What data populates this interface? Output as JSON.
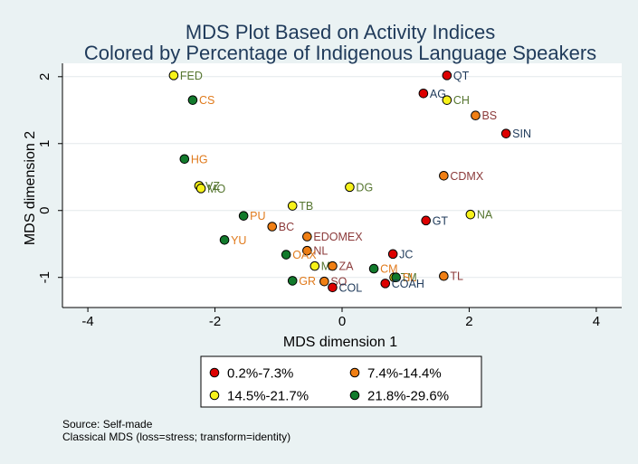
{
  "chart_data": {
    "type": "scatter",
    "title": [
      "MDS Plot Based on Activity Indices",
      "Colored by Percentage of Indigenous Language Speakers"
    ],
    "xlabel": "MDS dimension 1",
    "ylabel": "MDS dimension 2",
    "xlim": [
      -4.4,
      4.4
    ],
    "ylim": [
      -1.45,
      2.2
    ],
    "xticks": [
      -4,
      -2,
      0,
      2,
      4
    ],
    "yticks": [
      -1,
      0,
      1,
      2
    ],
    "grid": true,
    "legend_placement": "bottom",
    "legend": [
      {
        "key": "c1",
        "label": "0.2%-7.3%",
        "color": "#dd0000"
      },
      {
        "key": "c2",
        "label": "7.4%-14.4%",
        "color": "#f07f14"
      },
      {
        "key": "c3",
        "label": "14.5%-21.7%",
        "color": "#f7f21a"
      },
      {
        "key": "c4",
        "label": "21.8%-29.6%",
        "color": "#127a2c"
      }
    ],
    "label_colors": {
      "c1": "#1f3a5a",
      "c2": "#8b3a3a",
      "c3": "#55752f",
      "c4": "#e07a1c"
    },
    "points": [
      {
        "label": "FED",
        "x": -2.65,
        "y": 2.02,
        "cat": "c3"
      },
      {
        "label": "QT",
        "x": 1.65,
        "y": 2.02,
        "cat": "c1"
      },
      {
        "label": "AG",
        "x": 1.28,
        "y": 1.75,
        "cat": "c1"
      },
      {
        "label": "CH",
        "x": 1.65,
        "y": 1.65,
        "cat": "c3"
      },
      {
        "label": "CS",
        "x": -2.35,
        "y": 1.65,
        "cat": "c4"
      },
      {
        "label": "BS",
        "x": 2.1,
        "y": 1.42,
        "cat": "c2"
      },
      {
        "label": "SIN",
        "x": 2.58,
        "y": 1.15,
        "cat": "c1"
      },
      {
        "label": "HG",
        "x": -2.48,
        "y": 0.77,
        "cat": "c4"
      },
      {
        "label": "CDMX",
        "x": 1.6,
        "y": 0.52,
        "cat": "c2"
      },
      {
        "label": "VZ",
        "x": -2.25,
        "y": 0.37,
        "cat": "c3"
      },
      {
        "label": "MO",
        "x": -2.22,
        "y": 0.33,
        "cat": "c3"
      },
      {
        "label": "DG",
        "x": 0.12,
        "y": 0.35,
        "cat": "c3"
      },
      {
        "label": "TB",
        "x": -0.78,
        "y": 0.07,
        "cat": "c3"
      },
      {
        "label": "PU",
        "x": -1.55,
        "y": -0.08,
        "cat": "c4"
      },
      {
        "label": "NA",
        "x": 2.02,
        "y": -0.06,
        "cat": "c3"
      },
      {
        "label": "GT",
        "x": 1.32,
        "y": -0.15,
        "cat": "c1"
      },
      {
        "label": "BC",
        "x": -1.1,
        "y": -0.24,
        "cat": "c2"
      },
      {
        "label": "EDOMEX",
        "x": -0.55,
        "y": -0.39,
        "cat": "c2"
      },
      {
        "label": "YU",
        "x": -1.85,
        "y": -0.44,
        "cat": "c4"
      },
      {
        "label": "NL",
        "x": -0.55,
        "y": -0.6,
        "cat": "c2"
      },
      {
        "label": "OAX",
        "x": -0.88,
        "y": -0.66,
        "cat": "c4"
      },
      {
        "label": "JC",
        "x": 0.8,
        "y": -0.65,
        "cat": "c1"
      },
      {
        "label": "MI",
        "x": -0.43,
        "y": -0.83,
        "cat": "c3"
      },
      {
        "label": "ZA",
        "x": -0.15,
        "y": -0.83,
        "cat": "c2"
      },
      {
        "label": "CM",
        "x": 0.5,
        "y": -0.87,
        "cat": "c4"
      },
      {
        "label": "TM",
        "x": 0.82,
        "y": -1.0,
        "cat": "c3"
      },
      {
        "label": "SL",
        "x": 0.85,
        "y": -1.0,
        "cat": "c4"
      },
      {
        "label": "TL",
        "x": 1.6,
        "y": -0.98,
        "cat": "c2"
      },
      {
        "label": "GR",
        "x": -0.78,
        "y": -1.05,
        "cat": "c4"
      },
      {
        "label": "SO",
        "x": -0.28,
        "y": -1.06,
        "cat": "c2"
      },
      {
        "label": "COAH",
        "x": 0.68,
        "y": -1.09,
        "cat": "c1"
      },
      {
        "label": "COL",
        "x": -0.15,
        "y": -1.15,
        "cat": "c1"
      }
    ]
  },
  "notes": {
    "source": "Source: Self-made",
    "method": "Classical MDS (loss=stress; transform=identity)"
  }
}
